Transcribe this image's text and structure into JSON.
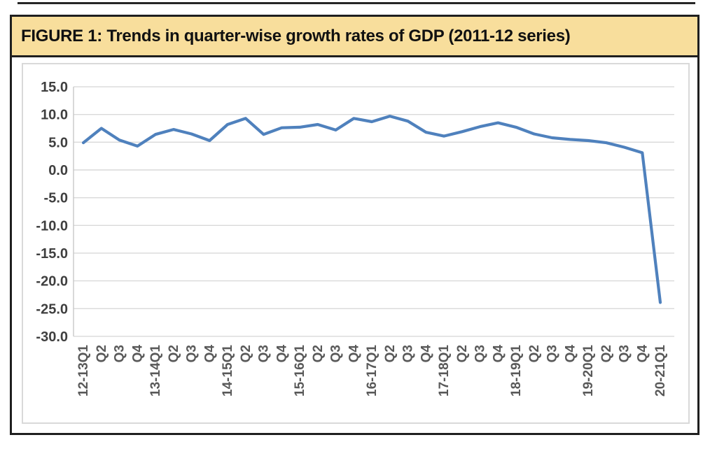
{
  "figure": {
    "title": "FIGURE 1: Trends in quarter-wise growth rates of GDP (2011-12 series)",
    "banner_bg": "#F8DE9C",
    "border_color": "#1f1f1f"
  },
  "chart_data": {
    "type": "line",
    "title": "FIGURE 1: Trends in quarter-wise growth rates of GDP (2011-12 series)",
    "categories": [
      "12-13Q1",
      "Q2",
      "Q3",
      "Q4",
      "13-14Q1",
      "Q2",
      "Q3",
      "Q4",
      "14-15Q1",
      "Q2",
      "Q3",
      "Q4",
      "15-16Q1",
      "Q2",
      "Q3",
      "Q4",
      "16-17Q1",
      "Q2",
      "Q3",
      "Q4",
      "17-18Q1",
      "Q2",
      "Q3",
      "Q4",
      "18-19Q1",
      "Q2",
      "Q3",
      "Q4",
      "19-20Q1",
      "Q2",
      "Q3",
      "Q4",
      "20-21Q1"
    ],
    "series": [
      {
        "name": "GDP growth rate (%)",
        "values": [
          4.9,
          7.5,
          5.4,
          4.3,
          6.4,
          7.3,
          6.5,
          5.3,
          8.2,
          9.3,
          6.4,
          7.6,
          7.7,
          8.2,
          7.2,
          9.3,
          8.7,
          9.7,
          8.8,
          6.8,
          6.1,
          6.9,
          7.8,
          8.5,
          7.7,
          6.5,
          5.8,
          5.5,
          5.3,
          4.9,
          4.1,
          3.1,
          -23.9
        ]
      }
    ],
    "xlabel": "",
    "ylabel": "",
    "ylim": [
      -30,
      15
    ],
    "yticks": [
      15,
      10,
      5,
      0,
      -5,
      -10,
      -15,
      -20,
      -25,
      -30
    ],
    "ytick_labels": [
      "15.0",
      "10.0",
      "5.0",
      "0.0",
      "-5.0",
      "-10.0",
      "-15.0",
      "-20.0",
      "-25.0",
      "-30.0"
    ],
    "grid": "horizontal",
    "legend_position": "none",
    "line_color": "#4F81BD",
    "gridline_color": "#D9D9D9",
    "axis_line_color": "#C8C8C8",
    "ytick_label_color": "#3f3f3f",
    "xtick_label_color": "#595959"
  }
}
